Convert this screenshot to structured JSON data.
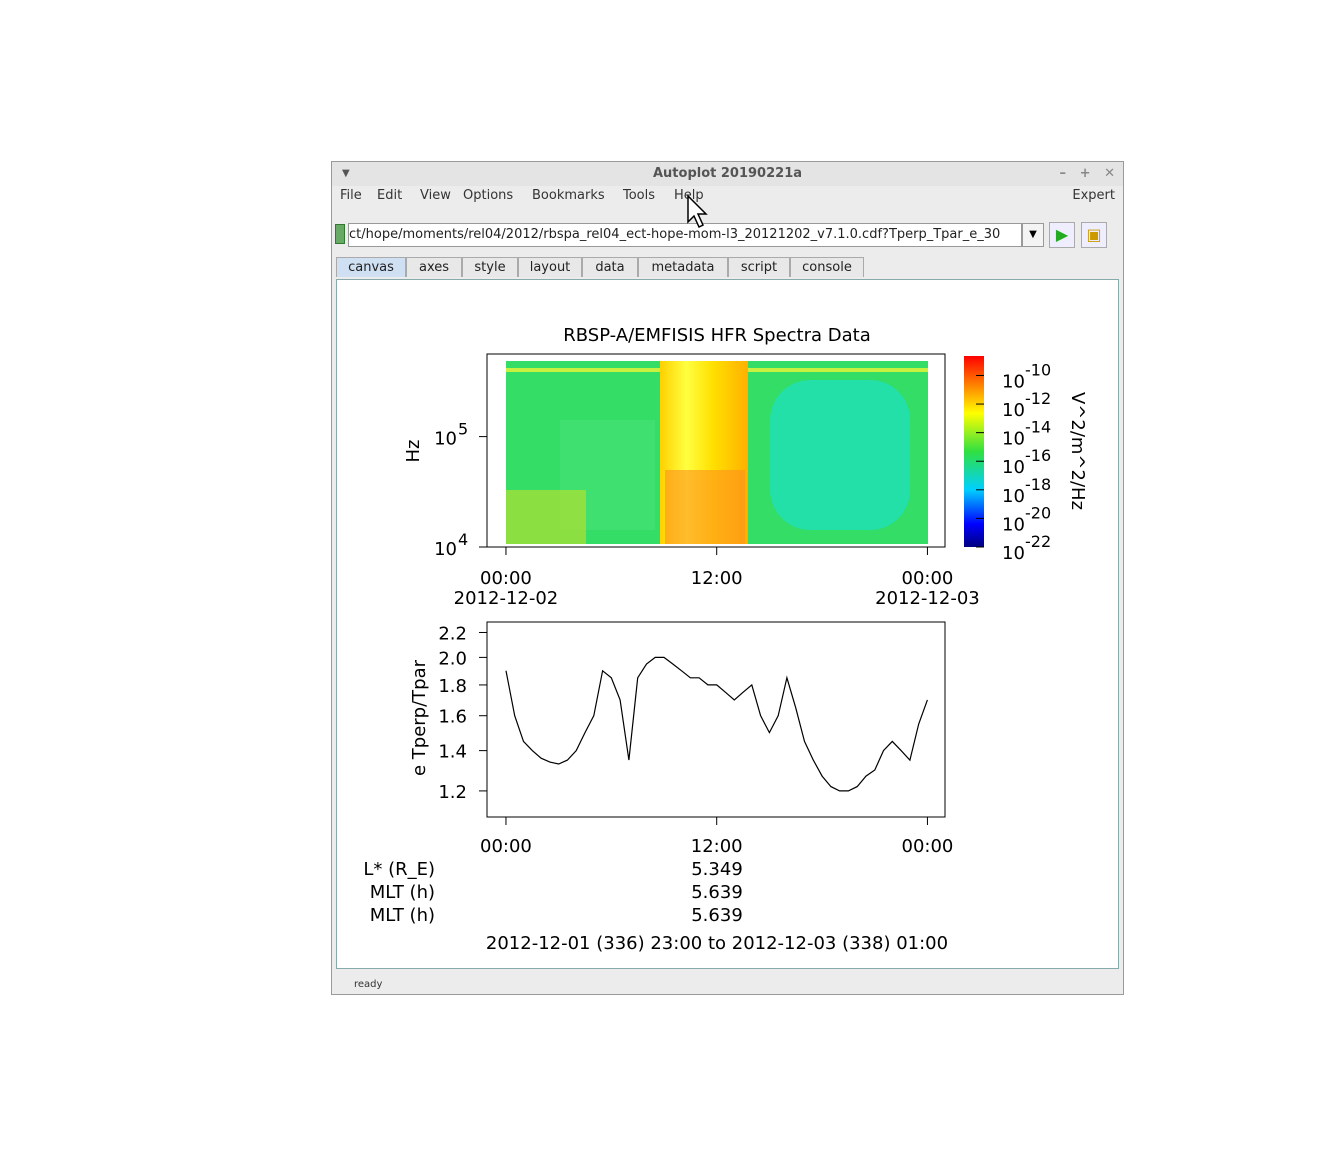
{
  "window": {
    "title": "Autoplot 20190221a",
    "menu": [
      "File",
      "Edit",
      "View",
      "Options",
      "Bookmarks",
      "Tools",
      "Help"
    ],
    "expert": "Expert",
    "url": "ct/hope/moments/rel04/2012/rbspa_rel04_ect-hope-mom-l3_20121202_v7.1.0.cdf?Tperp_Tpar_e_30",
    "tabs": [
      "canvas",
      "axes",
      "style",
      "layout",
      "data",
      "metadata",
      "script",
      "console"
    ],
    "status": "ready"
  },
  "chart_data": [
    {
      "type": "spectrogram",
      "title": "RBSP-A/EMFISIS  HFR Spectra Data",
      "ylabel": "Hz",
      "ylog": true,
      "ylim": [
        10000,
        560000
      ],
      "yticks": [
        {
          "value": 10000,
          "label": "10",
          "exponent": "4"
        },
        {
          "value": 100000,
          "label": "10",
          "exponent": "5"
        }
      ],
      "xlim": [
        -1.08,
        25
      ],
      "xticks": [
        {
          "value": 0,
          "label": "00:00",
          "date": "2012-12-02"
        },
        {
          "value": 12,
          "label": "12:00"
        },
        {
          "value": 24,
          "label": "00:00",
          "date": "2012-12-03"
        }
      ],
      "zlabel": "V^2/m^2/Hz",
      "zlog": true,
      "zlim": [
        1e-22,
        2.3e-09
      ],
      "zticks": [
        {
          "value": 1e-10,
          "label": "10",
          "exponent": "-10"
        },
        {
          "value": 1e-12,
          "label": "10",
          "exponent": "-12"
        },
        {
          "value": 1e-14,
          "label": "10",
          "exponent": "-14"
        },
        {
          "value": 1e-16,
          "label": "10",
          "exponent": "-16"
        },
        {
          "value": 1e-18,
          "label": "10",
          "exponent": "-18"
        },
        {
          "value": 1e-20,
          "label": "10",
          "exponent": "-20"
        },
        {
          "value": 1e-22,
          "label": "10",
          "exponent": "-22"
        }
      ]
    },
    {
      "type": "line",
      "ylabel": "e Tperp/Tpar",
      "ylog": true,
      "ylim": [
        1.086,
        2.29
      ],
      "yticks": [
        1.2,
        1.4,
        1.6,
        1.8,
        {
          "value": 2,
          "label": "2.0"
        },
        2.2
      ],
      "xlim": [
        -1.08,
        25
      ],
      "xticks": [
        {
          "value": 0,
          "label": "00:00"
        },
        {
          "value": 12,
          "label": "12:00"
        },
        {
          "value": 24,
          "label": "00:00"
        }
      ],
      "color": "#000000",
      "x": [
        0,
        0.5,
        1,
        1.5,
        2,
        2.5,
        3,
        3.5,
        4,
        4.5,
        5,
        5.5,
        6,
        6.5,
        7,
        7.5,
        8,
        8.5,
        9,
        9.5,
        10,
        10.5,
        11,
        11.5,
        12,
        12.5,
        13,
        13.5,
        14,
        14.5,
        15,
        15.5,
        16,
        16.5,
        17,
        17.5,
        18,
        18.5,
        19,
        19.5,
        20,
        20.5,
        21,
        21.5,
        22,
        22.5,
        23,
        23.5,
        24
      ],
      "values": [
        1.9,
        1.6,
        1.45,
        1.4,
        1.36,
        1.34,
        1.33,
        1.35,
        1.4,
        1.5,
        1.6,
        1.9,
        1.85,
        1.7,
        1.35,
        1.85,
        1.95,
        2.0,
        2.0,
        1.95,
        1.9,
        1.85,
        1.85,
        1.8,
        1.8,
        1.75,
        1.7,
        1.75,
        1.8,
        1.6,
        1.5,
        1.6,
        1.85,
        1.65,
        1.45,
        1.35,
        1.27,
        1.22,
        1.2,
        1.2,
        1.22,
        1.27,
        1.3,
        1.4,
        1.45,
        1.4,
        1.35,
        1.55,
        1.7
      ]
    }
  ],
  "info": {
    "rows": [
      {
        "label": "L* (R_E)",
        "value": "5.349"
      },
      {
        "label": "MLT (h)",
        "value": "5.639"
      },
      {
        "label": "MLT (h)",
        "value": "5.639"
      }
    ],
    "range": "2012-12-01 (336) 23:00 to 2012-12-03 (338) 01:00"
  }
}
